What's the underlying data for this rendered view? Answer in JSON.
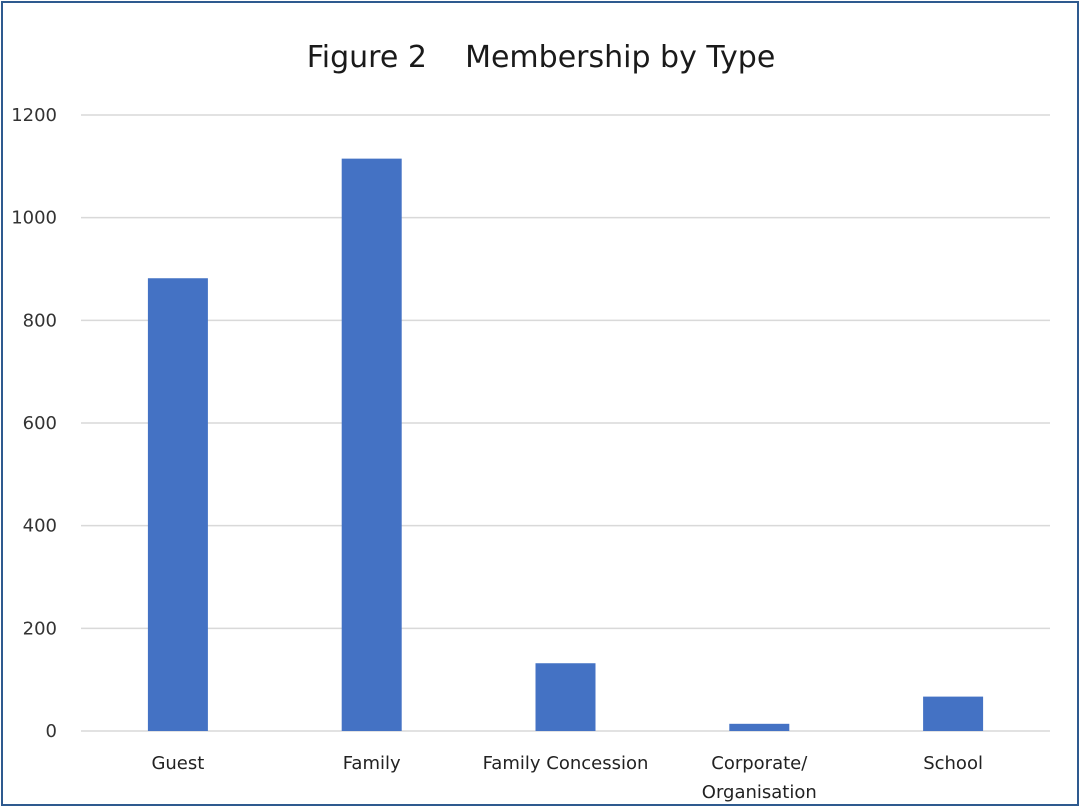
{
  "chart_data": {
    "type": "bar",
    "title": "Figure 2    Membership by Type",
    "xlabel": "",
    "ylabel": "",
    "categories": [
      [
        "Guest"
      ],
      [
        "Family"
      ],
      [
        "Family Concession"
      ],
      [
        "Corporate/",
        "Organisation"
      ],
      [
        "School"
      ]
    ],
    "values": [
      882,
      1115,
      132,
      14,
      67
    ],
    "ylim": [
      0,
      1200
    ],
    "yticks": [
      "0",
      "200",
      "400",
      "600",
      "800",
      "1000",
      "1200"
    ],
    "grid": true,
    "legend": "none",
    "bar_color": "#4472c4"
  }
}
